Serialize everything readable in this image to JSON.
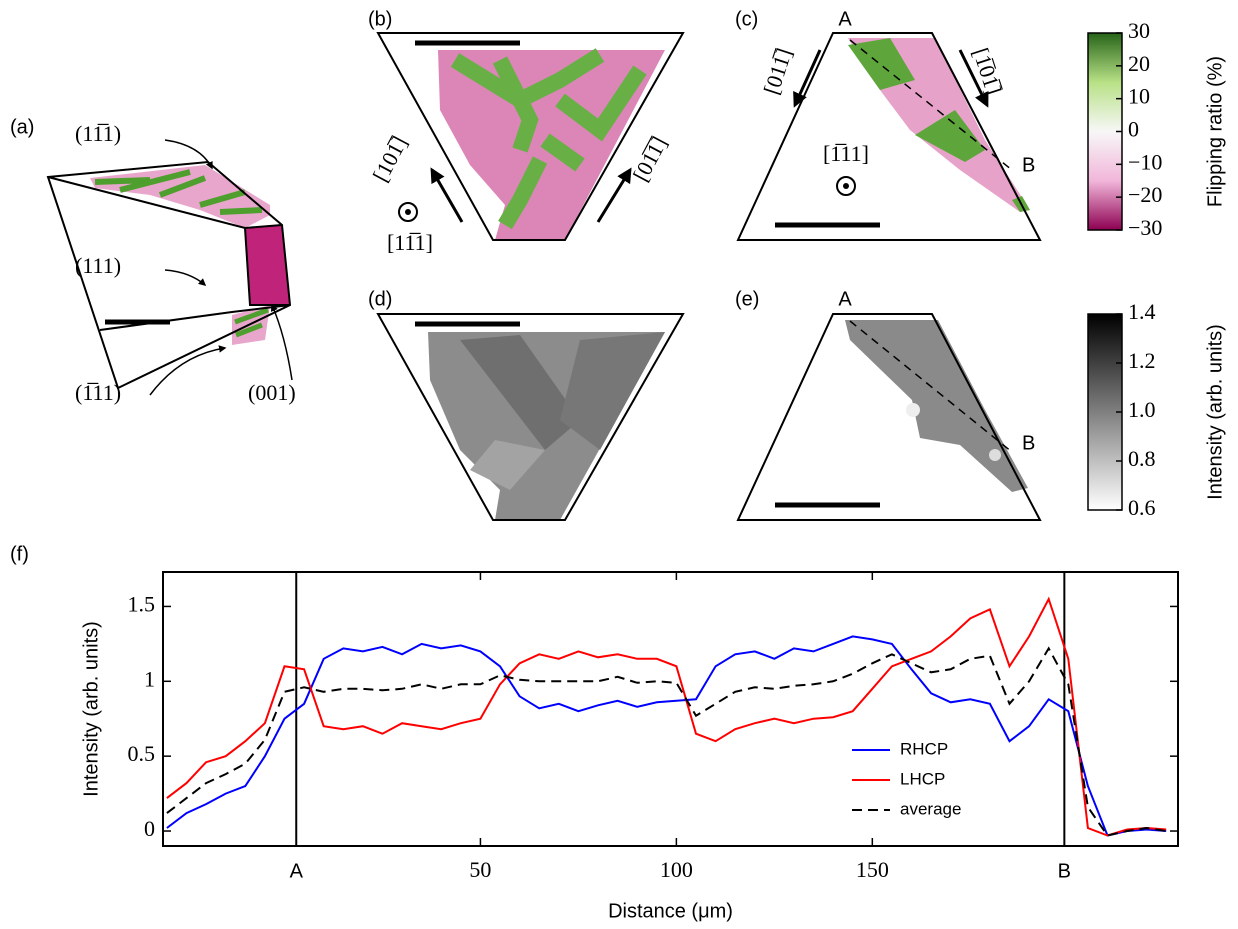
{
  "panels": {
    "a": {
      "label": "(a)",
      "facets": [
        "(11̅1)",
        "(111)",
        "(1̅11)",
        "(001)"
      ]
    },
    "b": {
      "label": "(b)",
      "directions": [
        "[101̅]",
        "[01̅1̅]",
        "[11̅1]"
      ]
    },
    "c": {
      "label": "(c)",
      "directions": [
        "[011̅]",
        "[1̅01̅]",
        "[1̅11]"
      ],
      "points": [
        "A",
        "B"
      ]
    },
    "d": {
      "label": "(d)"
    },
    "e": {
      "label": "(e)",
      "points": [
        "A",
        "B"
      ]
    },
    "f": {
      "label": "(f)"
    }
  },
  "chart_data": [
    {
      "type": "line",
      "xlabel": "Distance (μm)",
      "ylabel": "Intensity (arb. units)",
      "xlim": [
        -31,
        228
      ],
      "ylim": [
        -0.1,
        1.73
      ],
      "xticks": [
        {
          "value": 3,
          "label": "A"
        },
        50,
        100,
        150,
        {
          "value": 199,
          "label": "B"
        }
      ],
      "yticks": [
        0,
        0.5,
        1,
        1.5
      ],
      "legend": "lower right",
      "x": [
        -30,
        -25,
        -20,
        -15,
        -10,
        -5,
        0,
        5,
        10,
        15,
        20,
        25,
        30,
        35,
        40,
        45,
        50,
        55,
        60,
        65,
        70,
        75,
        80,
        85,
        90,
        95,
        100,
        105,
        110,
        115,
        120,
        125,
        130,
        135,
        140,
        145,
        150,
        155,
        160,
        165,
        170,
        175,
        180,
        185,
        190,
        195,
        200,
        205,
        210,
        215,
        220,
        225
      ],
      "series": [
        {
          "name": "RHCP",
          "color": "#0000ff",
          "linestyle": "solid",
          "values": [
            0.02,
            0.12,
            0.18,
            0.25,
            0.3,
            0.5,
            0.75,
            0.85,
            1.15,
            1.22,
            1.2,
            1.23,
            1.18,
            1.25,
            1.22,
            1.24,
            1.2,
            1.1,
            0.9,
            0.82,
            0.85,
            0.8,
            0.84,
            0.87,
            0.83,
            0.86,
            0.87,
            0.88,
            1.1,
            1.18,
            1.2,
            1.15,
            1.22,
            1.2,
            1.25,
            1.3,
            1.28,
            1.25,
            1.08,
            0.92,
            0.86,
            0.88,
            0.85,
            0.6,
            0.7,
            0.88,
            0.8,
            0.3,
            -0.03,
            0,
            0.01,
            0
          ]
        },
        {
          "name": "LHCP",
          "color": "#ff0000",
          "linestyle": "solid",
          "values": [
            0.22,
            0.32,
            0.46,
            0.5,
            0.6,
            0.72,
            1.1,
            1.08,
            0.7,
            0.68,
            0.7,
            0.65,
            0.72,
            0.7,
            0.68,
            0.72,
            0.75,
            0.98,
            1.12,
            1.18,
            1.15,
            1.2,
            1.16,
            1.18,
            1.15,
            1.15,
            1.1,
            0.65,
            0.6,
            0.68,
            0.72,
            0.75,
            0.72,
            0.75,
            0.76,
            0.8,
            0.95,
            1.1,
            1.15,
            1.2,
            1.3,
            1.42,
            1.48,
            1.1,
            1.3,
            1.55,
            1.15,
            0.02,
            -0.03,
            0.01,
            0.02,
            0.01
          ]
        },
        {
          "name": "average",
          "color": "#000000",
          "linestyle": "dashed",
          "values": [
            0.12,
            0.22,
            0.32,
            0.38,
            0.45,
            0.61,
            0.93,
            0.96,
            0.93,
            0.95,
            0.95,
            0.94,
            0.95,
            0.98,
            0.95,
            0.98,
            0.98,
            1.04,
            1.01,
            1,
            1,
            1,
            1,
            1.03,
            0.99,
            1,
            0.99,
            0.77,
            0.85,
            0.93,
            0.96,
            0.95,
            0.97,
            0.98,
            1,
            1.05,
            1.12,
            1.18,
            1.12,
            1.06,
            1.08,
            1.15,
            1.17,
            0.85,
            1,
            1.22,
            0.98,
            0.16,
            -0.03,
            0,
            0.02,
            0
          ]
        }
      ]
    },
    {
      "type": "colorbar",
      "label": "Flipping ratio (%)",
      "ylim": [
        -30,
        30
      ],
      "yticks": [
        {
          "value": -30,
          "label": "−30"
        },
        {
          "value": -20,
          "label": "−20"
        },
        {
          "value": -10,
          "label": "−10"
        },
        0,
        10,
        20,
        30
      ],
      "colors": [
        "#8e0152",
        "#f1b6da",
        "#f7f7f7",
        "#b8e186",
        "#276419"
      ]
    },
    {
      "type": "colorbar",
      "label": "Intensity (arb. units)",
      "ylim": [
        0.6,
        1.4
      ],
      "yticks": [
        0.6,
        0.8,
        {
          "value": 1,
          "label": "1.0"
        },
        1.2,
        1.4
      ],
      "colors": [
        "#ffffff",
        "#000000"
      ]
    }
  ]
}
